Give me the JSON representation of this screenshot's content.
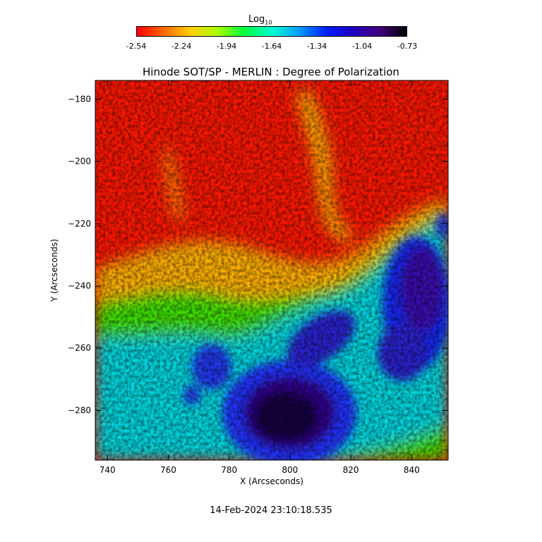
{
  "colorbar": {
    "title": "Log",
    "title_sub": "10",
    "ticks": [
      "-2.54",
      "-2.24",
      "-1.94",
      "-1.64",
      "-1.34",
      "-1.04",
      "-0.73"
    ],
    "colors": [
      "#ff0000",
      "#ff6a00",
      "#ffd000",
      "#a8ff00",
      "#00ff40",
      "#00ffd0",
      "#00a0ff",
      "#0020ff",
      "#2000c0",
      "#400080",
      "#000000"
    ]
  },
  "chart_data": {
    "type": "heatmap",
    "title": "Hinode SOT/SP - MERLIN : Degree of Polarization",
    "xlabel": "X (Arcseconds)",
    "ylabel": "Y (Arcseconds)",
    "xlim": [
      736,
      852
    ],
    "ylim": [
      -296,
      -174
    ],
    "x_ticks": [
      740,
      760,
      780,
      800,
      820,
      840
    ],
    "y_ticks": [
      -180,
      -200,
      -220,
      -240,
      -260,
      -280
    ],
    "x_tick_labels": [
      "740",
      "760",
      "780",
      "800",
      "820",
      "840"
    ],
    "y_tick_labels": [
      "−180",
      "−200",
      "−220",
      "−240",
      "−260",
      "−280"
    ],
    "color_scale": "log10",
    "value_range": [
      -2.54,
      -0.73
    ],
    "grid": false
  },
  "footer": {
    "timestamp": "14-Feb-2024 23:10:18.535"
  }
}
